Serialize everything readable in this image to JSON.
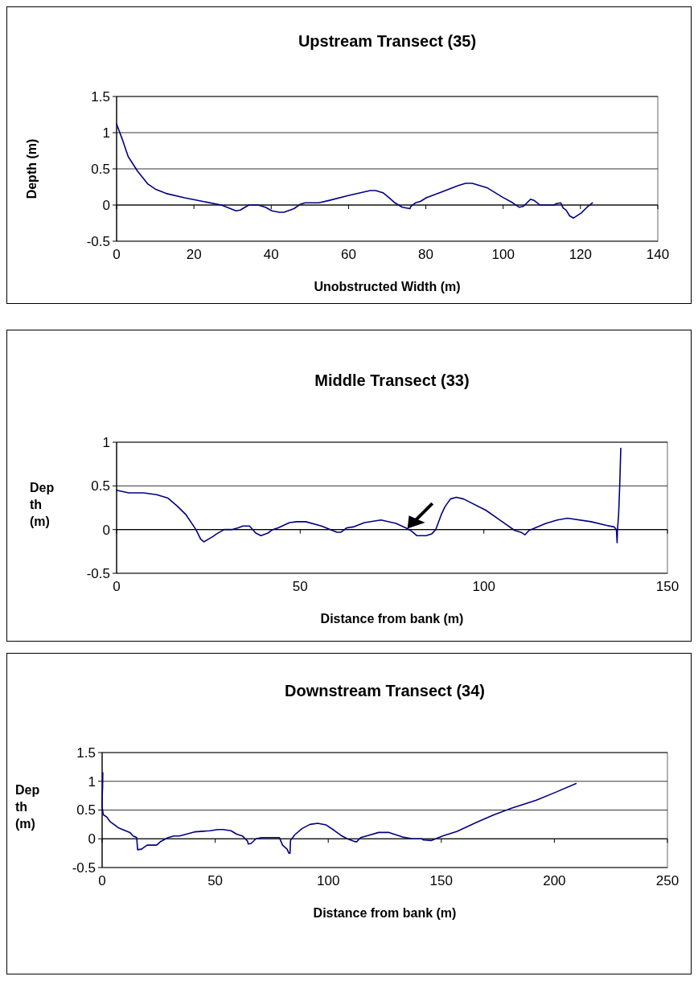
{
  "chart_data": [
    {
      "type": "line",
      "title": "Upstream Transect (35)",
      "xlabel": "Unobstructed Width (m)",
      "ylabel": "Depth (m)",
      "xlim": [
        0,
        140
      ],
      "ylim": [
        -0.5,
        1.5
      ],
      "xticks": [
        0,
        20,
        40,
        60,
        80,
        100,
        120,
        140
      ],
      "yticks": [
        -0.5,
        0,
        0.5,
        1,
        1.5
      ],
      "grid": "y",
      "x": [
        0,
        1.6,
        3,
        5.4,
        8.1,
        10,
        12.8,
        17.6,
        22.3,
        27.1,
        30.9,
        32,
        34.2,
        36.6,
        38.5,
        40.2,
        42.1,
        43.3,
        45.9,
        47.5,
        48.8,
        52.3,
        54.7,
        59.9,
        65.6,
        67,
        68.9,
        70.3,
        72,
        73.9,
        75.9,
        76.1,
        77.3,
        78.6,
        80.1,
        84.1,
        88.4,
        90.3,
        92,
        95.8,
        99.8,
        102.5,
        104.1,
        105.2,
        107.1,
        108.1,
        109.5,
        113.1,
        113.8,
        114.9,
        115.5,
        116.3,
        117.2,
        118.2,
        120.2,
        121.7,
        123.1
      ],
      "series": [
        {
          "color": "#000080",
          "values": [
            1.12,
            0.89,
            0.67,
            0.47,
            0.29,
            0.22,
            0.16,
            0.1,
            0.05,
            0,
            -0.08,
            -0.07,
            0,
            0,
            -0.03,
            -0.08,
            -0.1,
            -0.1,
            -0.05,
            0.01,
            0.03,
            0.03,
            0.06,
            0.13,
            0.2,
            0.2,
            0.17,
            0.11,
            0.03,
            -0.03,
            -0.05,
            -0.02,
            0.03,
            0.05,
            0.1,
            0.18,
            0.27,
            0.3,
            0.3,
            0.24,
            0.11,
            0.03,
            -0.03,
            -0.02,
            0.08,
            0.06,
            0,
            0,
            0.02,
            0.03,
            -0.04,
            -0.07,
            -0.15,
            -0.18,
            -0.11,
            -0.03,
            0.03
          ]
        }
      ]
    },
    {
      "type": "line",
      "title": "Middle Transect (33)",
      "xlabel": "Distance from bank (m)",
      "ylabel": "Depth (m)",
      "xlim": [
        0,
        150
      ],
      "ylim": [
        -0.5,
        1
      ],
      "xticks": [
        0,
        50,
        100,
        150
      ],
      "yticks": [
        -0.5,
        0,
        0.5,
        1
      ],
      "grid": "y",
      "x": [
        0,
        3.3,
        7.3,
        10.9,
        14,
        16.5,
        18.9,
        21.6,
        22.9,
        23.8,
        26.2,
        27.2,
        29.3,
        31.3,
        33.1,
        34.4,
        36.2,
        37.9,
        39.3,
        41.2,
        42.5,
        44,
        47.1,
        49.1,
        51.5,
        55.8,
        60,
        61.1,
        62.7,
        64.4,
        67.5,
        72,
        76.1,
        79.2,
        80.4,
        81.8,
        84.3,
        85.8,
        86.9,
        88.4,
        89.4,
        90.9,
        92.5,
        94.5,
        100.6,
        104.7,
        108.4,
        110.1,
        111.2,
        112.3,
        116.9,
        120,
        122.8,
        129.2,
        133.2,
        135.5,
        136.1,
        136.3,
        136.4,
        136.7,
        137,
        137.3
      ],
      "series": [
        {
          "color": "#000080",
          "values": [
            0.45,
            0.42,
            0.42,
            0.4,
            0.36,
            0.27,
            0.17,
            0,
            -0.11,
            -0.14,
            -0.08,
            -0.05,
            0,
            0,
            0.02,
            0.04,
            0.04,
            -0.04,
            -0.07,
            -0.04,
            0,
            0.02,
            0.08,
            0.09,
            0.09,
            0.04,
            -0.03,
            -0.03,
            0.02,
            0.03,
            0.08,
            0.11,
            0.07,
            0.01,
            -0.02,
            -0.07,
            -0.07,
            -0.05,
            0,
            0.17,
            0.26,
            0.35,
            0.37,
            0.35,
            0.22,
            0.1,
            -0.01,
            -0.03,
            -0.06,
            -0.01,
            0.07,
            0.11,
            0.13,
            0.09,
            0.05,
            0.03,
            0,
            -0.15,
            0,
            0.17,
            0.5,
            0.93
          ]
        }
      ]
    },
    {
      "type": "line",
      "title": "Downstream Transect (34)",
      "xlabel": "Distance from bank (m)",
      "ylabel": "Depth (m)",
      "xlim": [
        0,
        250
      ],
      "ylim": [
        -0.5,
        1.5
      ],
      "xticks": [
        0,
        50,
        100,
        150,
        200,
        250
      ],
      "yticks": [
        -0.5,
        0,
        0.5,
        1,
        1.5
      ],
      "grid": "y",
      "x": [
        0.3,
        0.2,
        0,
        0,
        0.5,
        2,
        3.5,
        7.3,
        12.3,
        13.7,
        15.3,
        15.7,
        17.4,
        19.9,
        24.1,
        25.8,
        29.2,
        31.7,
        34.2,
        40.9,
        47.7,
        51.1,
        53.6,
        57,
        59.5,
        62,
        64.3,
        64.6,
        65.9,
        68,
        70.5,
        78.4,
        79.8,
        81.8,
        82.6,
        83.1,
        83.3,
        85.2,
        88.5,
        91.9,
        95.3,
        99.1,
        102.5,
        105.6,
        108.4,
        111.8,
        112.6,
        114.3,
        116.9,
        122.3,
        126.9,
        132.9,
        137.1,
        141.3,
        142.2,
        145.5,
        150.6,
        157,
        165.8,
        173.4,
        181,
        192,
        201.2,
        209.6
      ],
      "series": [
        {
          "color": "#000080",
          "values": [
            1.15,
            0.9,
            0.72,
            0.55,
            0.42,
            0.38,
            0.3,
            0.19,
            0.11,
            0.05,
            0.02,
            -0.19,
            -0.18,
            -0.11,
            -0.11,
            -0.05,
            0.02,
            0.05,
            0.05,
            0.12,
            0.14,
            0.16,
            0.16,
            0.14,
            0.08,
            0.05,
            -0.04,
            -0.09,
            -0.08,
            0,
            0.02,
            0.02,
            -0.11,
            -0.18,
            -0.25,
            -0.25,
            -0.03,
            0.07,
            0.18,
            0.25,
            0.27,
            0.24,
            0.15,
            0.06,
            0,
            -0.05,
            -0.05,
            0.02,
            0.05,
            0.11,
            0.11,
            0.03,
            0,
            0,
            -0.02,
            -0.03,
            0.05,
            0.13,
            0.29,
            0.42,
            0.53,
            0.67,
            0.82,
            0.96
          ]
        }
      ]
    }
  ]
}
